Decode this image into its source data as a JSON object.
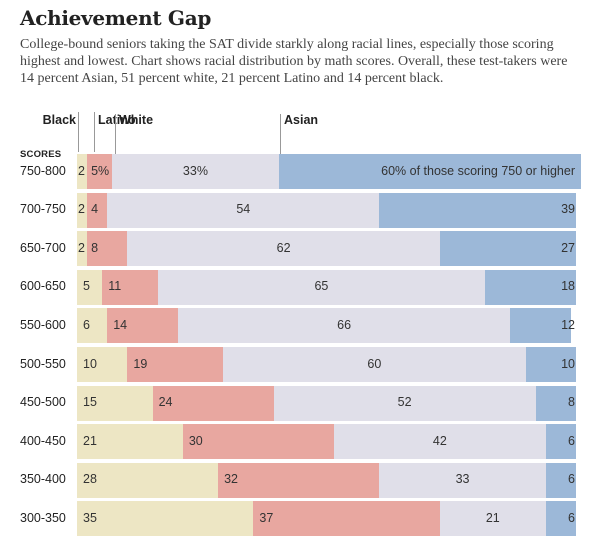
{
  "chart_data": {
    "type": "bar",
    "stacked": true,
    "orientation": "horizontal",
    "title": "Achievement Gap",
    "subtitle": "College-bound seniors taking the SAT divide starkly along racial lines, especially those scoring highest and lowest. Chart shows racial distribution by math scores. Overall, these test-takers were 14 percent Asian, 51 percent white, 21 percent Latino and 14 percent black.",
    "y_header": "SCORES",
    "categories": [
      "750-800",
      "700-750",
      "650-700",
      "600-650",
      "550-600",
      "500-550",
      "450-500",
      "400-450",
      "350-400",
      "300-350"
    ],
    "series": [
      {
        "name": "Black",
        "color": "#ede6c4",
        "values": [
          2,
          2,
          2,
          5,
          6,
          10,
          15,
          21,
          28,
          35
        ],
        "labels": [
          "2",
          "2",
          "2",
          "5",
          "6",
          "10",
          "15",
          "21",
          "28",
          "35"
        ]
      },
      {
        "name": "Latino",
        "color": "#e8a7a0",
        "values": [
          5,
          4,
          8,
          11,
          14,
          19,
          24,
          30,
          32,
          37
        ],
        "labels": [
          "5%",
          "4",
          "8",
          "11",
          "14",
          "19",
          "24",
          "30",
          "32",
          "37"
        ]
      },
      {
        "name": "White",
        "color": "#e0dfe9",
        "values": [
          33,
          54,
          62,
          65,
          66,
          60,
          52,
          42,
          33,
          21
        ],
        "labels": [
          "33%",
          "54",
          "62",
          "65",
          "66",
          "60",
          "52",
          "42",
          "33",
          "21"
        ]
      },
      {
        "name": "Asian",
        "color": "#9cb8d8",
        "values": [
          60,
          39,
          27,
          18,
          12,
          10,
          8,
          6,
          6,
          6
        ],
        "labels": [
          "60% of those scoring 750 or higher",
          "39",
          "27",
          "18",
          "12",
          "10",
          "8",
          "6",
          "6",
          "6"
        ]
      }
    ],
    "xlim": [
      0,
      100
    ],
    "unit": "percent",
    "legend": "top, aligned with first bar segments"
  }
}
